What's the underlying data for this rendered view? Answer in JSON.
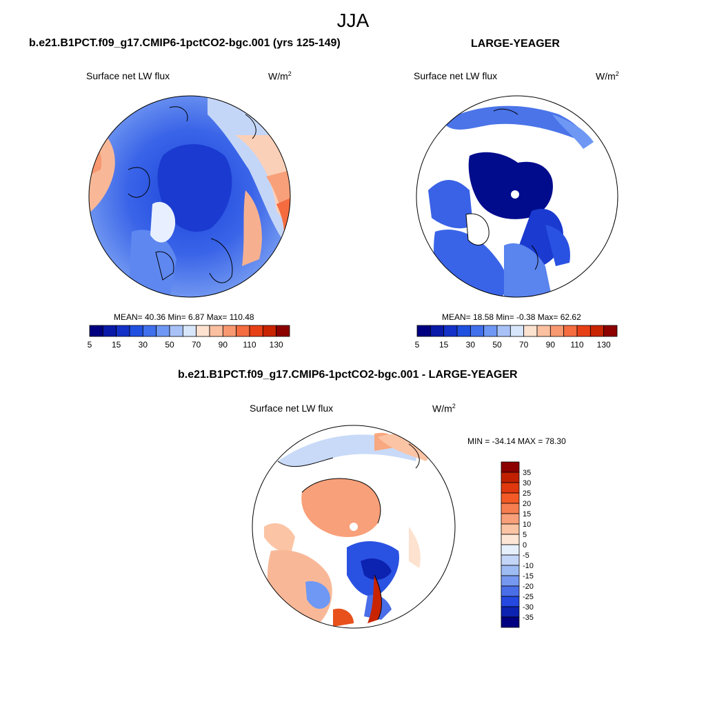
{
  "figure": {
    "title": "JJA",
    "field_label": "Surface net LW flux",
    "units_base": "W/m",
    "units_exp": "2"
  },
  "panels": {
    "model": {
      "title": "b.e21.B1PCT.f09_g17.CMIP6-1pctCO2-bgc.001 (yrs 125-149)",
      "stats": "MEAN=  40.36  Min=   6.87  Max= 110.48"
    },
    "obs": {
      "title": "LARGE-YEAGER",
      "stats": "MEAN=  18.58  Min=  -0.38  Max=  62.62"
    },
    "diff": {
      "title": "b.e21.B1PCT.f09_g17.CMIP6-1pctCO2-bgc.001 - LARGE-YEAGER",
      "stats": "MIN = -34.14 MAX =  78.30"
    }
  },
  "colorbar_abs": {
    "colors": [
      "#000080",
      "#0a1aa8",
      "#1432c8",
      "#2050e0",
      "#4070ec",
      "#6e98f4",
      "#a8c2f8",
      "#d8e6fb",
      "#fde2d0",
      "#fbc0a0",
      "#f89870",
      "#f46c40",
      "#e84016",
      "#c82400",
      "#8c0000"
    ],
    "tick_labels": [
      "5",
      "15",
      "30",
      "50",
      "70",
      "90",
      "110",
      "130"
    ]
  },
  "colorbar_diff": {
    "colors": [
      "#8c0000",
      "#c02000",
      "#e0380e",
      "#f45a26",
      "#f67e50",
      "#f8a07a",
      "#fbc4a4",
      "#fde6d6",
      "#e6f0fd",
      "#c4d6f8",
      "#9ebcf4",
      "#7698f0",
      "#4a6ee8",
      "#2448e0",
      "#0c22b0",
      "#000080"
    ],
    "tick_labels": [
      "35",
      "30",
      "25",
      "20",
      "15",
      "10",
      "5",
      "0",
      "-5",
      "-10",
      "-15",
      "-20",
      "-25",
      "-30",
      "-35"
    ]
  }
}
